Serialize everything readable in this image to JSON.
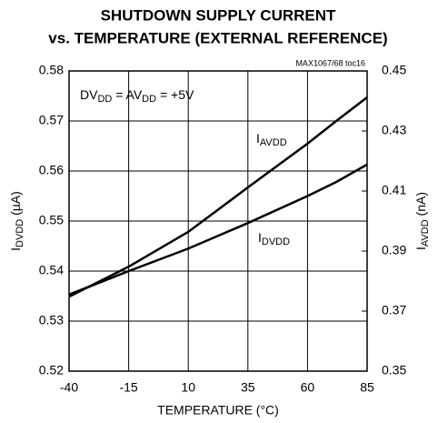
{
  "chart_data": {
    "type": "line",
    "title": [
      "SHUTDOWN SUPPLY CURRENT",
      "vs. TEMPERATURE (EXTERNAL REFERENCE)"
    ],
    "note": "MAX1067/68 toc16",
    "annotation": [
      "DV",
      "DD",
      " = AV",
      "DD",
      " = +5V"
    ],
    "xlabel": "TEMPERATURE (°C)",
    "ylabel": [
      "I",
      "DVDD",
      " (µA)"
    ],
    "y2label": [
      "I",
      "AVDD",
      " (nA)"
    ],
    "x": [
      -40,
      -15,
      10,
      35,
      60,
      72,
      85
    ],
    "series": [
      {
        "name": [
          "I",
          "AVDD"
        ],
        "color": "#000000",
        "axis": "y2",
        "values": [
          0.3748,
          0.3848,
          0.3964,
          0.4112,
          0.4258,
          0.4333,
          0.4412
        ]
      },
      {
        "name": [
          "I",
          "DVDD"
        ],
        "color": "#000000",
        "values": [
          0.5353,
          0.54,
          0.5445,
          0.5496,
          0.555,
          0.5578,
          0.5613
        ]
      }
    ],
    "xlim": [
      -40,
      85
    ],
    "xticks": [
      -40,
      -15,
      10,
      35,
      60,
      85
    ],
    "ylim": [
      0.52,
      0.58
    ],
    "yticks": [
      0.52,
      0.53,
      0.54,
      0.55,
      0.56,
      0.57,
      0.58
    ],
    "y2lim": [
      0.35,
      0.45
    ],
    "y2ticks": [
      0.35,
      0.37,
      0.39,
      0.41,
      0.43,
      0.45
    ],
    "grid": true
  }
}
